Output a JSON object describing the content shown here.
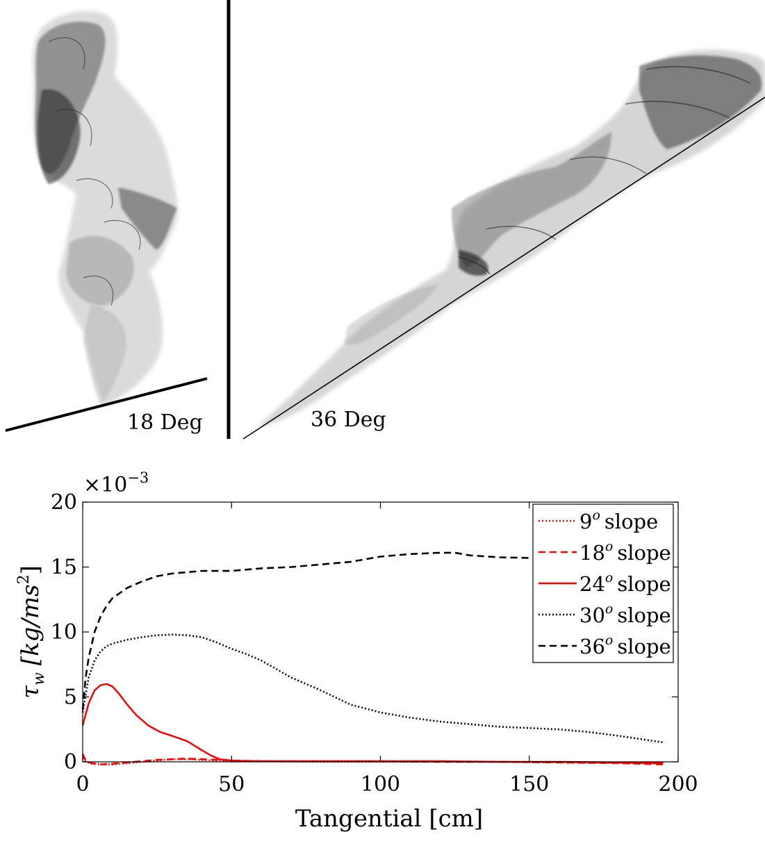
{
  "panels": {
    "left_label": "18 Deg",
    "right_label": "36 Deg"
  },
  "chart_data": {
    "type": "line",
    "xlabel": "Tangential [cm]",
    "ylabel": "τw [kg/ms²]",
    "ylabel_symbol": "τ",
    "ylabel_subscript": "w",
    "ylabel_units": "[kg/ms",
    "ylabel_units_sup": "2",
    "ylabel_units_end": "]",
    "exponent_label": "×10",
    "exponent_power": "−3",
    "xlim": [
      0,
      200
    ],
    "ylim": [
      0,
      20
    ],
    "xticks": [
      0,
      50,
      100,
      150,
      200
    ],
    "yticks": [
      0,
      5,
      10,
      15,
      20
    ],
    "xtick_labels": [
      "0",
      "50",
      "100",
      "150",
      "200"
    ],
    "ytick_labels": [
      "0",
      "5",
      "10",
      "15",
      "20"
    ],
    "legend_position": "top-right",
    "series": [
      {
        "name": "9° slope",
        "legend_deg": "9",
        "legend_text": "slope",
        "color": "#ff0000",
        "dash": "dotted",
        "x": [
          0,
          1,
          3,
          6,
          10,
          15,
          20,
          25,
          30,
          35,
          40,
          45,
          50,
          60,
          80,
          100,
          120,
          140,
          160,
          180,
          195
        ],
        "y": [
          0.3,
          0.0,
          -0.15,
          -0.2,
          -0.2,
          -0.1,
          0.0,
          0.1,
          0.2,
          0.2,
          0.15,
          0.1,
          0.1,
          0.05,
          0.0,
          0.0,
          0.0,
          0.0,
          -0.05,
          -0.1,
          -0.15
        ]
      },
      {
        "name": "18° slope",
        "legend_deg": "18",
        "legend_text": "slope",
        "color": "#ff0000",
        "dash": "dashed",
        "x": [
          0,
          1,
          3,
          6,
          10,
          15,
          20,
          25,
          30,
          35,
          40,
          45,
          50,
          60,
          80,
          100,
          120,
          140,
          160,
          180,
          195
        ],
        "y": [
          0.6,
          0.1,
          -0.1,
          -0.2,
          -0.15,
          -0.05,
          0.05,
          0.15,
          0.2,
          0.25,
          0.2,
          0.15,
          0.1,
          0.05,
          0.05,
          0.05,
          0.0,
          0.0,
          -0.05,
          -0.1,
          -0.2
        ]
      },
      {
        "name": "24° slope",
        "legend_deg": "24",
        "legend_text": "slope",
        "color": "#ff0000",
        "dash": "solid",
        "x": [
          0,
          2,
          4,
          6,
          8,
          10,
          12,
          15,
          18,
          22,
          26,
          30,
          35,
          40,
          43,
          46,
          50,
          55,
          60,
          80,
          100,
          120,
          140,
          160,
          180,
          195
        ],
        "y": [
          2.8,
          4.5,
          5.5,
          5.9,
          6.0,
          5.8,
          5.3,
          4.4,
          3.6,
          2.8,
          2.3,
          2.0,
          1.6,
          0.9,
          0.5,
          0.2,
          0.1,
          0.05,
          0.05,
          0.05,
          0.05,
          0.05,
          0.0,
          0.0,
          -0.05,
          -0.1
        ]
      },
      {
        "name": "30° slope",
        "legend_deg": "30",
        "legend_text": "slope",
        "color": "#000000",
        "dash": "dotted",
        "x": [
          0,
          2,
          4,
          6,
          8,
          10,
          15,
          20,
          25,
          30,
          35,
          40,
          45,
          50,
          55,
          60,
          70,
          80,
          90,
          100,
          110,
          120,
          130,
          140,
          150,
          160,
          170,
          180,
          195
        ],
        "y": [
          3.8,
          6.5,
          7.8,
          8.5,
          8.9,
          9.1,
          9.4,
          9.6,
          9.75,
          9.8,
          9.75,
          9.6,
          9.2,
          8.7,
          8.3,
          7.8,
          6.5,
          5.5,
          4.4,
          3.8,
          3.4,
          3.1,
          2.9,
          2.7,
          2.6,
          2.5,
          2.3,
          2.0,
          1.5
        ]
      },
      {
        "name": "36° slope",
        "legend_deg": "36",
        "legend_text": "slope",
        "color": "#000000",
        "dash": "dashed",
        "x": [
          0,
          1,
          2,
          4,
          6,
          8,
          10,
          15,
          20,
          25,
          30,
          35,
          40,
          45,
          50,
          60,
          70,
          80,
          90,
          100,
          110,
          120,
          125,
          130,
          140,
          150,
          160,
          170,
          180,
          195
        ],
        "y": [
          4.0,
          6.5,
          8.0,
          10.0,
          11.2,
          12.0,
          12.6,
          13.4,
          13.9,
          14.3,
          14.5,
          14.6,
          14.7,
          14.7,
          14.7,
          14.9,
          15.0,
          15.2,
          15.4,
          15.8,
          16.0,
          16.1,
          16.1,
          15.9,
          15.75,
          15.7,
          15.6,
          15.6,
          15.55,
          15.5
        ]
      }
    ]
  }
}
